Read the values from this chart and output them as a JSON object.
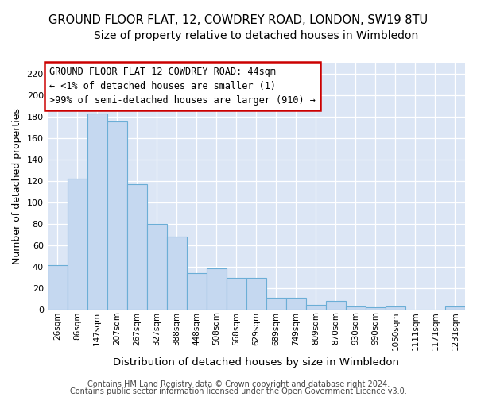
{
  "title": "GROUND FLOOR FLAT, 12, COWDREY ROAD, LONDON, SW19 8TU",
  "subtitle": "Size of property relative to detached houses in Wimbledon",
  "xlabel": "Distribution of detached houses by size in Wimbledon",
  "ylabel": "Number of detached properties",
  "categories": [
    "26sqm",
    "86sqm",
    "147sqm",
    "207sqm",
    "267sqm",
    "327sqm",
    "388sqm",
    "448sqm",
    "508sqm",
    "568sqm",
    "629sqm",
    "689sqm",
    "749sqm",
    "809sqm",
    "870sqm",
    "930sqm",
    "990sqm",
    "1050sqm",
    "1111sqm",
    "1171sqm",
    "1231sqm"
  ],
  "values": [
    41,
    122,
    183,
    175,
    117,
    80,
    68,
    34,
    38,
    29,
    29,
    11,
    11,
    4,
    8,
    3,
    2,
    3,
    0,
    0,
    3
  ],
  "bar_color": "#c5d8f0",
  "bar_edge_color": "#6baed6",
  "plot_bg_color": "#dce6f5",
  "fig_bg_color": "#ffffff",
  "ylim": [
    0,
    230
  ],
  "yticks": [
    0,
    20,
    40,
    60,
    80,
    100,
    120,
    140,
    160,
    180,
    200,
    220
  ],
  "annotation_line1": "GROUND FLOOR FLAT 12 COWDREY ROAD: 44sqm",
  "annotation_line2": "← <1% of detached houses are smaller (1)",
  "annotation_line3": ">99% of semi-detached houses are larger (910) →",
  "annotation_box_color": "#ffffff",
  "annotation_box_edge": "#cc0000",
  "footer1": "Contains HM Land Registry data © Crown copyright and database right 2024.",
  "footer2": "Contains public sector information licensed under the Open Government Licence v3.0.",
  "title_fontsize": 10.5,
  "subtitle_fontsize": 10,
  "ylabel_fontsize": 9,
  "xlabel_fontsize": 9.5,
  "tick_fontsize": 8,
  "ann_fontsize": 8.5,
  "footer_fontsize": 7
}
